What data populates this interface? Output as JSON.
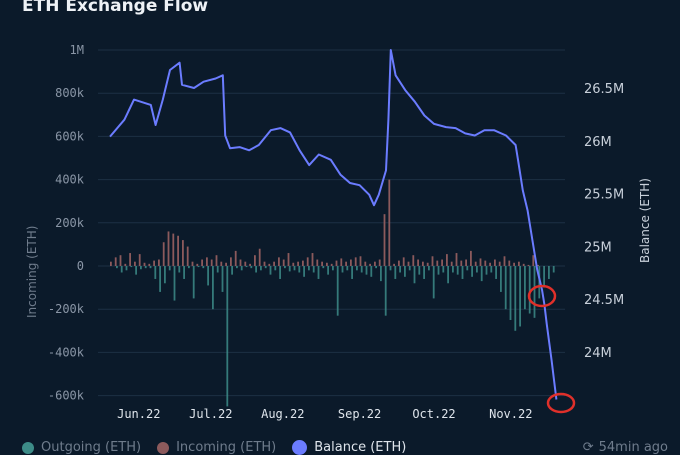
{
  "title": "ETH Exchange Flow",
  "updated": "54min ago",
  "refresh_icon": "refresh-clock-icon",
  "colors": {
    "outgoing": "#3d8c88",
    "incoming": "#8c5a5c",
    "balance": "#6b7cff",
    "annotation": "#e0302a"
  },
  "chart_data": {
    "type": "bar+line",
    "title": "ETH Exchange Flow",
    "ylabel": "Incoming (ETH)",
    "y2label": "Balance (ETH)",
    "ylim": [
      -600000,
      1000000
    ],
    "y2lim": [
      23.55,
      26.86
    ],
    "yticks": [
      {
        "v": 1000000,
        "label": "1M"
      },
      {
        "v": 800000,
        "label": "800k"
      },
      {
        "v": 600000,
        "label": "600k"
      },
      {
        "v": 400000,
        "label": "400k"
      },
      {
        "v": 200000,
        "label": "200k"
      },
      {
        "v": 0,
        "label": "0"
      },
      {
        "v": -200000,
        "label": "-200k"
      },
      {
        "v": -400000,
        "label": "-400k"
      },
      {
        "v": -600000,
        "label": "-600k"
      }
    ],
    "y2ticks": [
      {
        "v": 26.5,
        "label": "26.5M"
      },
      {
        "v": 26,
        "label": "26M"
      },
      {
        "v": 25.5,
        "label": "25.5M"
      },
      {
        "v": 25,
        "label": "25M"
      },
      {
        "v": 24.5,
        "label": "24.5M"
      },
      {
        "v": 24,
        "label": "24M"
      }
    ],
    "x_unit": "days since May 20 2022",
    "xticks": [
      {
        "d": 12,
        "label": "Jun.22"
      },
      {
        "d": 42,
        "label": "Jul.22"
      },
      {
        "d": 72,
        "label": "Aug.22"
      },
      {
        "d": 104,
        "label": "Sep.22"
      },
      {
        "d": 135,
        "label": "Oct.22"
      },
      {
        "d": 167,
        "label": "Nov.22"
      }
    ],
    "legend": [
      {
        "name": "Outgoing (ETH)",
        "key": "outgoing"
      },
      {
        "name": "Incoming (ETH)",
        "key": "incoming"
      },
      {
        "name": "Balance (ETH)",
        "key": "balance"
      }
    ],
    "legend_position": "bottom-left",
    "bar_step_days": 2,
    "incoming_k": [
      20,
      40,
      50,
      10,
      60,
      20,
      55,
      15,
      10,
      25,
      30,
      110,
      160,
      150,
      140,
      120,
      90,
      20,
      10,
      30,
      40,
      30,
      50,
      20,
      15,
      40,
      70,
      30,
      20,
      10,
      50,
      80,
      20,
      10,
      20,
      40,
      30,
      60,
      15,
      20,
      25,
      40,
      60,
      30,
      20,
      15,
      10,
      25,
      35,
      20,
      30,
      40,
      45,
      20,
      10,
      20,
      30,
      240,
      400,
      10,
      25,
      40,
      20,
      50,
      30,
      20,
      15,
      45,
      25,
      30,
      55,
      20,
      60,
      25,
      30,
      70,
      20,
      35,
      25,
      15,
      30,
      20,
      45,
      25,
      15,
      20,
      10,
      5,
      50,
      5,
      0,
      0,
      0,
      0
    ],
    "outgoing_k": [
      0,
      10,
      30,
      20,
      5,
      40,
      15,
      10,
      10,
      60,
      120,
      80,
      20,
      160,
      30,
      60,
      10,
      150,
      5,
      10,
      90,
      200,
      30,
      120,
      650,
      40,
      10,
      20,
      5,
      10,
      30,
      20,
      10,
      40,
      20,
      60,
      10,
      25,
      20,
      30,
      50,
      20,
      30,
      60,
      10,
      40,
      20,
      230,
      30,
      20,
      60,
      20,
      30,
      40,
      50,
      10,
      70,
      230,
      20,
      60,
      30,
      50,
      20,
      80,
      40,
      60,
      20,
      150,
      40,
      30,
      80,
      30,
      40,
      60,
      20,
      50,
      30,
      70,
      40,
      30,
      60,
      120,
      200,
      250,
      300,
      280,
      200,
      220,
      240,
      150,
      100,
      60,
      30,
      0
    ],
    "balance_M": [
      [
        0,
        26.04
      ],
      [
        6,
        26.2
      ],
      [
        10,
        26.39
      ],
      [
        17,
        26.34
      ],
      [
        19,
        26.15
      ],
      [
        22,
        26.39
      ],
      [
        25,
        26.67
      ],
      [
        29,
        26.74
      ],
      [
        30,
        26.53
      ],
      [
        35,
        26.5
      ],
      [
        39,
        26.56
      ],
      [
        44,
        26.59
      ],
      [
        47,
        26.62
      ],
      [
        48,
        26.05
      ],
      [
        50,
        25.93
      ],
      [
        54,
        25.94
      ],
      [
        58,
        25.91
      ],
      [
        62,
        25.96
      ],
      [
        67,
        26.1
      ],
      [
        71,
        26.12
      ],
      [
        75,
        26.08
      ],
      [
        79,
        25.91
      ],
      [
        83,
        25.77
      ],
      [
        87,
        25.87
      ],
      [
        92,
        25.82
      ],
      [
        96,
        25.68
      ],
      [
        100,
        25.6
      ],
      [
        104,
        25.58
      ],
      [
        108,
        25.49
      ],
      [
        110,
        25.39
      ],
      [
        112,
        25.49
      ],
      [
        115,
        25.72
      ],
      [
        116,
        26.2
      ],
      [
        117,
        26.86
      ],
      [
        119,
        26.62
      ],
      [
        123,
        26.48
      ],
      [
        127,
        26.37
      ],
      [
        131,
        26.24
      ],
      [
        135,
        26.16
      ],
      [
        140,
        26.13
      ],
      [
        144,
        26.12
      ],
      [
        148,
        26.07
      ],
      [
        152,
        26.05
      ],
      [
        156,
        26.1
      ],
      [
        160,
        26.1
      ],
      [
        165,
        26.05
      ],
      [
        169,
        25.96
      ],
      [
        170,
        25.82
      ],
      [
        172,
        25.53
      ],
      [
        174,
        25.34
      ],
      [
        176,
        25.06
      ],
      [
        178,
        24.78
      ],
      [
        180,
        24.59
      ],
      [
        181,
        24.45
      ],
      [
        182,
        24.26
      ],
      [
        184,
        23.92
      ],
      [
        186,
        23.55
      ]
    ],
    "annotations": [
      {
        "d": 180,
        "balance": 24.5,
        "shape": "circle"
      },
      {
        "d": 188,
        "balance": 23.55,
        "shape": "circle"
      }
    ]
  }
}
